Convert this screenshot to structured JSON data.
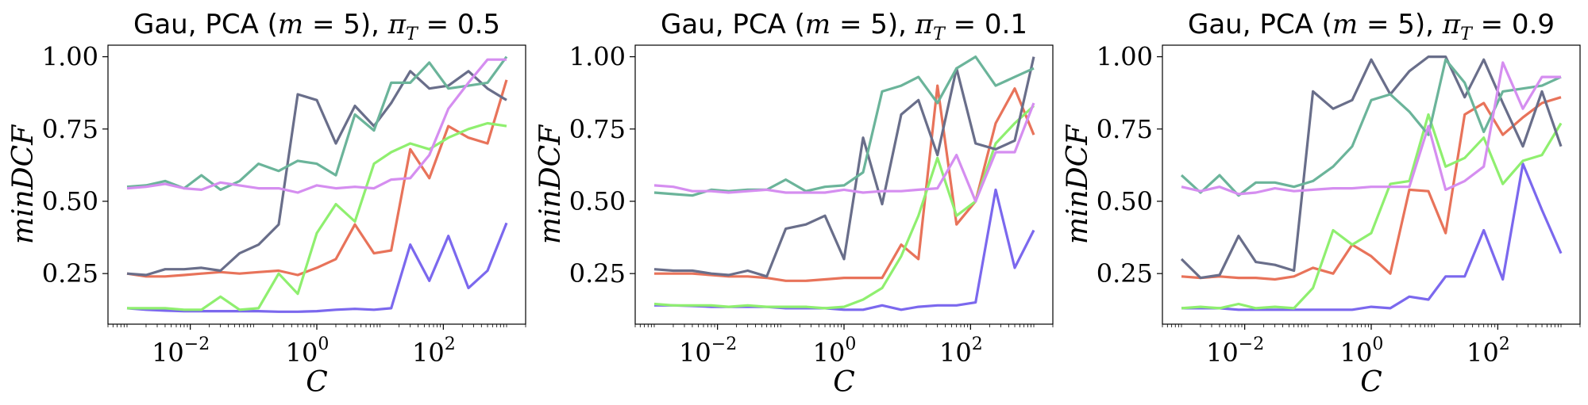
{
  "colors": {
    "purple": "#7B68EE",
    "orange": "#E8735A",
    "green": "#8FEF6F",
    "slate": "#696E8A",
    "teal": "#6BB49A",
    "violet": "#D58EF0"
  },
  "chart_data": [
    {
      "type": "line",
      "title": "Gau, PCA (m = 5), πT = 0.5",
      "title_prefix": "Gau, PCA (",
      "title_var": "m",
      "title_eq": " = 5), ",
      "title_pi": "π",
      "title_sub": "T",
      "title_val": " = 0.5",
      "xlabel": "C",
      "ylabel": "minDCF",
      "xscale": "log",
      "xlim": [
        0.0005,
        2000
      ],
      "ylim": [
        0.075,
        1.04
      ],
      "yticks": [
        "0.25",
        "0.50",
        "0.75",
        "1.00"
      ],
      "ytick_values": [
        0.25,
        0.5,
        0.75,
        1.0
      ],
      "xticks": [
        {
          "base": "10",
          "exp": "−2",
          "value": 0.01
        },
        {
          "base": "10",
          "exp": "0",
          "value": 1
        },
        {
          "base": "10",
          "exp": "2",
          "value": 100
        }
      ],
      "x": [
        0.001,
        0.002,
        0.004,
        0.008,
        0.015,
        0.03,
        0.06,
        0.12,
        0.25,
        0.5,
        1,
        2,
        4,
        8,
        15,
        30,
        60,
        120,
        250,
        500,
        1000
      ],
      "series": [
        {
          "color": "purple",
          "values": [
            0.13,
            0.125,
            0.122,
            0.12,
            0.12,
            0.12,
            0.12,
            0.12,
            0.118,
            0.118,
            0.12,
            0.125,
            0.128,
            0.125,
            0.13,
            0.35,
            0.225,
            0.38,
            0.2,
            0.26,
            0.425
          ]
        },
        {
          "color": "orange",
          "values": [
            0.25,
            0.24,
            0.24,
            0.245,
            0.25,
            0.255,
            0.25,
            0.255,
            0.26,
            0.245,
            0.27,
            0.3,
            0.42,
            0.32,
            0.33,
            0.68,
            0.58,
            0.76,
            0.72,
            0.7,
            0.92
          ]
        },
        {
          "color": "green",
          "values": [
            0.13,
            0.13,
            0.13,
            0.125,
            0.125,
            0.17,
            0.125,
            0.13,
            0.25,
            0.18,
            0.39,
            0.49,
            0.43,
            0.63,
            0.67,
            0.7,
            0.68,
            0.72,
            0.75,
            0.77,
            0.76
          ]
        },
        {
          "color": "slate",
          "values": [
            0.25,
            0.245,
            0.265,
            0.265,
            0.27,
            0.26,
            0.32,
            0.35,
            0.42,
            0.87,
            0.85,
            0.7,
            0.83,
            0.76,
            0.84,
            0.95,
            0.89,
            0.9,
            0.95,
            0.89,
            0.85
          ]
        },
        {
          "color": "teal",
          "values": [
            0.55,
            0.555,
            0.57,
            0.545,
            0.59,
            0.54,
            0.57,
            0.63,
            0.605,
            0.64,
            0.63,
            0.59,
            0.8,
            0.745,
            0.91,
            0.91,
            0.98,
            0.89,
            0.9,
            0.91,
            1.0
          ]
        },
        {
          "color": "violet",
          "values": [
            0.545,
            0.55,
            0.56,
            0.545,
            0.54,
            0.565,
            0.555,
            0.545,
            0.545,
            0.53,
            0.555,
            0.545,
            0.55,
            0.545,
            0.575,
            0.58,
            0.66,
            0.82,
            0.91,
            0.99,
            0.99
          ]
        }
      ]
    },
    {
      "type": "line",
      "title": "Gau, PCA (m = 5), πT = 0.1",
      "title_prefix": "Gau, PCA (",
      "title_var": "m",
      "title_eq": " = 5), ",
      "title_pi": "π",
      "title_sub": "T",
      "title_val": " = 0.1",
      "xlabel": "C",
      "ylabel": "minDCF",
      "xscale": "log",
      "xlim": [
        0.0005,
        2000
      ],
      "ylim": [
        0.075,
        1.04
      ],
      "yticks": [
        "0.25",
        "0.50",
        "0.75",
        "1.00"
      ],
      "ytick_values": [
        0.25,
        0.5,
        0.75,
        1.0
      ],
      "xticks": [
        {
          "base": "10",
          "exp": "−2",
          "value": 0.01
        },
        {
          "base": "10",
          "exp": "0",
          "value": 1
        },
        {
          "base": "10",
          "exp": "2",
          "value": 100
        }
      ],
      "x": [
        0.001,
        0.002,
        0.004,
        0.008,
        0.015,
        0.03,
        0.06,
        0.12,
        0.25,
        0.5,
        1,
        2,
        4,
        8,
        15,
        30,
        60,
        120,
        250,
        500,
        1000
      ],
      "series": [
        {
          "color": "purple",
          "values": [
            0.14,
            0.14,
            0.138,
            0.135,
            0.135,
            0.135,
            0.135,
            0.13,
            0.13,
            0.13,
            0.125,
            0.125,
            0.14,
            0.125,
            0.135,
            0.14,
            0.14,
            0.15,
            0.54,
            0.27,
            0.4
          ]
        },
        {
          "color": "orange",
          "values": [
            0.25,
            0.25,
            0.25,
            0.245,
            0.24,
            0.24,
            0.235,
            0.225,
            0.225,
            0.23,
            0.235,
            0.235,
            0.235,
            0.35,
            0.3,
            0.9,
            0.42,
            0.5,
            0.77,
            0.89,
            0.73
          ]
        },
        {
          "color": "green",
          "values": [
            0.145,
            0.14,
            0.14,
            0.14,
            0.135,
            0.14,
            0.135,
            0.135,
            0.135,
            0.13,
            0.135,
            0.16,
            0.2,
            0.31,
            0.45,
            0.65,
            0.45,
            0.5,
            0.7,
            0.77,
            0.83
          ]
        },
        {
          "color": "slate",
          "values": [
            0.265,
            0.26,
            0.26,
            0.25,
            0.245,
            0.26,
            0.24,
            0.405,
            0.42,
            0.45,
            0.3,
            0.72,
            0.49,
            0.8,
            0.85,
            0.66,
            0.96,
            0.7,
            0.68,
            0.71,
            1.0
          ]
        },
        {
          "color": "teal",
          "values": [
            0.53,
            0.525,
            0.52,
            0.54,
            0.535,
            0.54,
            0.54,
            0.575,
            0.535,
            0.55,
            0.555,
            0.6,
            0.88,
            0.9,
            0.93,
            0.84,
            0.96,
            1.0,
            0.9,
            0.93,
            0.96
          ]
        },
        {
          "color": "violet",
          "values": [
            0.555,
            0.55,
            0.535,
            0.535,
            0.53,
            0.535,
            0.54,
            0.53,
            0.53,
            0.53,
            0.54,
            0.53,
            0.535,
            0.535,
            0.54,
            0.545,
            0.66,
            0.5,
            0.67,
            0.67,
            0.84
          ]
        }
      ]
    },
    {
      "type": "line",
      "title": "Gau, PCA (m = 5), πT = 0.9",
      "title_prefix": "Gau, PCA (",
      "title_var": "m",
      "title_eq": " = 5), ",
      "title_pi": "π",
      "title_sub": "T",
      "title_val": " = 0.9",
      "xlabel": "C",
      "ylabel": "minDCF",
      "xscale": "log",
      "xlim": [
        0.0005,
        2000
      ],
      "ylim": [
        0.075,
        1.04
      ],
      "yticks": [
        "0.25",
        "0.50",
        "0.75",
        "1.00"
      ],
      "ytick_values": [
        0.25,
        0.5,
        0.75,
        1.0
      ],
      "xticks": [
        {
          "base": "10",
          "exp": "−2",
          "value": 0.01
        },
        {
          "base": "10",
          "exp": "0",
          "value": 1
        },
        {
          "base": "10",
          "exp": "2",
          "value": 100
        }
      ],
      "x": [
        0.001,
        0.002,
        0.004,
        0.008,
        0.015,
        0.03,
        0.06,
        0.12,
        0.25,
        0.5,
        1,
        2,
        4,
        8,
        15,
        30,
        60,
        120,
        250,
        500,
        1000
      ],
      "series": [
        {
          "color": "purple",
          "values": [
            0.13,
            0.13,
            0.13,
            0.125,
            0.125,
            0.125,
            0.125,
            0.125,
            0.125,
            0.125,
            0.135,
            0.13,
            0.17,
            0.16,
            0.24,
            0.24,
            0.4,
            0.23,
            0.63,
            0.47,
            0.32
          ]
        },
        {
          "color": "orange",
          "values": [
            0.24,
            0.235,
            0.24,
            0.235,
            0.235,
            0.23,
            0.24,
            0.27,
            0.25,
            0.35,
            0.31,
            0.25,
            0.54,
            0.535,
            0.39,
            0.8,
            0.84,
            0.73,
            0.79,
            0.84,
            0.86
          ]
        },
        {
          "color": "green",
          "values": [
            0.13,
            0.135,
            0.13,
            0.145,
            0.13,
            0.135,
            0.13,
            0.2,
            0.4,
            0.35,
            0.39,
            0.56,
            0.57,
            0.8,
            0.62,
            0.65,
            0.72,
            0.56,
            0.64,
            0.66,
            0.77
          ]
        },
        {
          "color": "slate",
          "values": [
            0.3,
            0.235,
            0.245,
            0.38,
            0.29,
            0.28,
            0.26,
            0.88,
            0.82,
            0.85,
            0.99,
            0.87,
            0.95,
            1.0,
            1.0,
            0.86,
            0.99,
            0.84,
            0.69,
            0.88,
            0.69
          ]
        },
        {
          "color": "teal",
          "values": [
            0.59,
            0.53,
            0.59,
            0.52,
            0.565,
            0.565,
            0.55,
            0.57,
            0.62,
            0.69,
            0.85,
            0.87,
            0.81,
            0.73,
            0.99,
            0.91,
            0.74,
            0.88,
            0.89,
            0.9,
            0.93
          ]
        },
        {
          "color": "violet",
          "values": [
            0.55,
            0.535,
            0.55,
            0.525,
            0.53,
            0.545,
            0.535,
            0.54,
            0.545,
            0.545,
            0.55,
            0.55,
            0.55,
            0.76,
            0.54,
            0.57,
            0.62,
            0.98,
            0.82,
            0.93,
            0.93
          ]
        }
      ]
    }
  ]
}
